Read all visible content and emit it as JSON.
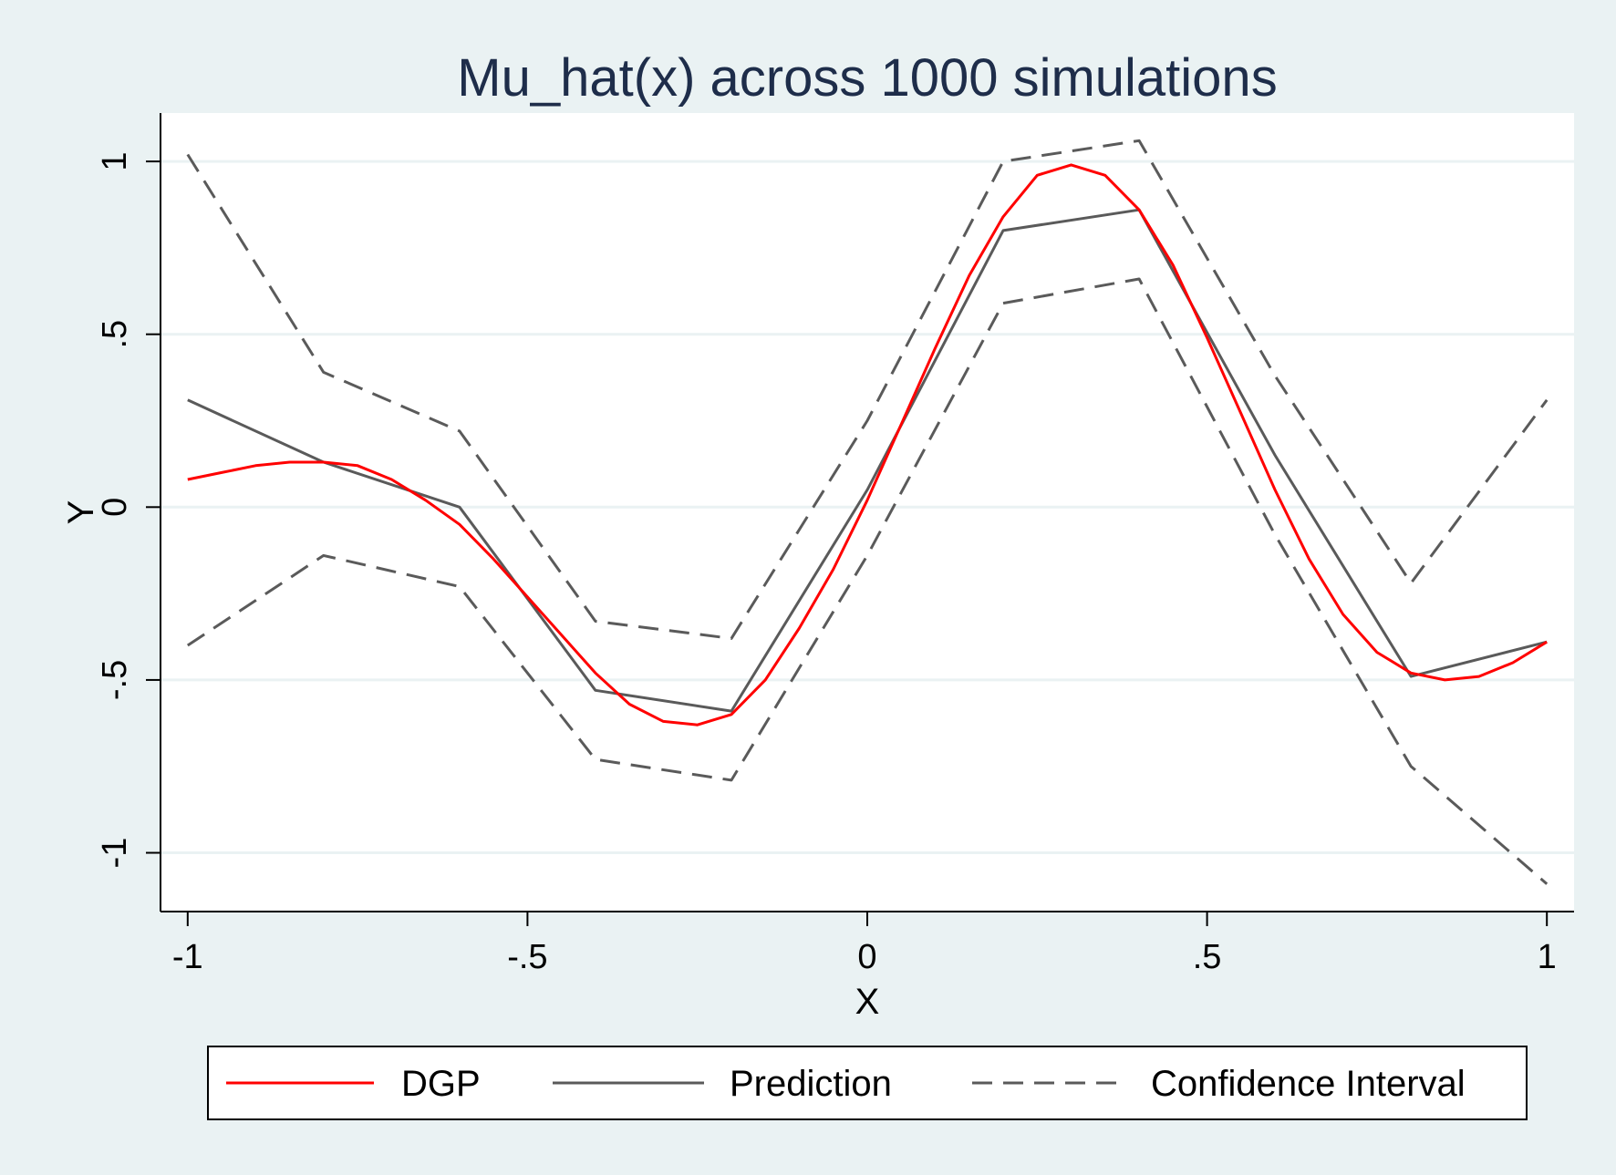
{
  "chart_data": {
    "type": "line",
    "title": "Mu_hat(x) across 1000 simulations",
    "xlabel": "X",
    "ylabel": "Y",
    "xlim": [
      -1.04,
      1.04
    ],
    "ylim": [
      -1.17,
      1.14
    ],
    "x_ticks": [
      -1,
      -0.5,
      0,
      0.5,
      1
    ],
    "x_tick_labels": [
      "-1",
      "-.5",
      "0",
      ".5",
      "1"
    ],
    "y_ticks": [
      -1,
      -0.5,
      0,
      0.5,
      1
    ],
    "y_tick_labels": [
      "-1",
      "-.5",
      "0",
      ".5",
      "1"
    ],
    "grid": true,
    "legend_position": "bottom",
    "series": [
      {
        "name": "DGP",
        "color": "#ff0000",
        "style": "solid",
        "x": [
          -1.0,
          -0.95,
          -0.9,
          -0.85,
          -0.8,
          -0.75,
          -0.7,
          -0.65,
          -0.6,
          -0.55,
          -0.5,
          -0.45,
          -0.4,
          -0.35,
          -0.3,
          -0.25,
          -0.2,
          -0.15,
          -0.1,
          -0.05,
          0.0,
          0.05,
          0.1,
          0.15,
          0.2,
          0.25,
          0.3,
          0.35,
          0.4,
          0.45,
          0.5,
          0.55,
          0.6,
          0.65,
          0.7,
          0.75,
          0.8,
          0.85,
          0.9,
          0.95,
          1.0
        ],
        "y": [
          0.08,
          0.1,
          0.12,
          0.13,
          0.13,
          0.12,
          0.08,
          0.02,
          -0.05,
          -0.15,
          -0.26,
          -0.37,
          -0.48,
          -0.57,
          -0.62,
          -0.63,
          -0.6,
          -0.5,
          -0.35,
          -0.18,
          0.02,
          0.24,
          0.46,
          0.67,
          0.84,
          0.96,
          0.99,
          0.96,
          0.86,
          0.7,
          0.49,
          0.27,
          0.05,
          -0.15,
          -0.31,
          -0.42,
          -0.48,
          -0.5,
          -0.49,
          -0.45,
          -0.39
        ]
      },
      {
        "name": "Prediction",
        "color": "#5a5a5a",
        "style": "solid",
        "x": [
          -1.0,
          -0.8,
          -0.6,
          -0.4,
          -0.2,
          0.0,
          0.2,
          0.4,
          0.6,
          0.8,
          1.0
        ],
        "y": [
          0.31,
          0.13,
          0.0,
          -0.53,
          -0.59,
          0.05,
          0.8,
          0.86,
          0.15,
          -0.49,
          -0.39
        ]
      },
      {
        "name": "Confidence Interval",
        "color": "#5a5a5a",
        "style": "dashed",
        "x": [
          -1.0,
          -0.8,
          -0.6,
          -0.4,
          -0.2,
          0.0,
          0.2,
          0.4,
          0.6,
          0.8,
          1.0
        ],
        "y": [
          1.02,
          0.39,
          0.22,
          -0.33,
          -0.38,
          0.25,
          1.0,
          1.06,
          0.38,
          -0.22,
          0.31
        ]
      },
      {
        "name": "",
        "color": "#5a5a5a",
        "style": "dashed",
        "x": [
          -1.0,
          -0.8,
          -0.6,
          -0.4,
          -0.2,
          0.0,
          0.2,
          0.4,
          0.6,
          0.8,
          1.0
        ],
        "y": [
          -0.4,
          -0.14,
          -0.23,
          -0.73,
          -0.79,
          -0.14,
          0.59,
          0.66,
          -0.08,
          -0.75,
          -1.09
        ]
      }
    ],
    "legend": [
      {
        "label": "DGP",
        "color": "#ff0000",
        "style": "solid"
      },
      {
        "label": "Prediction",
        "color": "#5a5a5a",
        "style": "solid"
      },
      {
        "label": "Confidence Interval",
        "color": "#5a5a5a",
        "style": "dashed"
      }
    ]
  }
}
